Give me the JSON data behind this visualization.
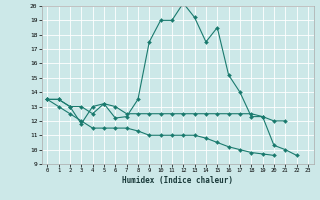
{
  "xlabel": "Humidex (Indice chaleur)",
  "x": [
    0,
    1,
    2,
    3,
    4,
    5,
    6,
    7,
    8,
    9,
    10,
    11,
    12,
    13,
    14,
    15,
    16,
    17,
    18,
    19,
    20,
    21,
    22,
    23
  ],
  "line1": [
    13.5,
    13.5,
    13.0,
    11.8,
    13.0,
    13.2,
    12.2,
    12.3,
    13.5,
    17.5,
    19.0,
    19.0,
    20.2,
    19.2,
    17.5,
    18.5,
    15.2,
    14.0,
    12.3,
    12.3,
    10.3,
    10.0,
    9.6,
    null
  ],
  "line2": [
    13.5,
    13.5,
    13.0,
    13.0,
    12.5,
    13.2,
    13.0,
    12.5,
    12.5,
    12.5,
    12.5,
    12.5,
    12.5,
    12.5,
    12.5,
    12.5,
    12.5,
    12.5,
    12.5,
    12.3,
    12.0,
    12.0,
    null,
    null
  ],
  "line3": [
    13.5,
    13.0,
    12.5,
    12.0,
    11.5,
    11.5,
    11.5,
    11.5,
    11.3,
    11.0,
    11.0,
    11.0,
    11.0,
    11.0,
    10.8,
    10.5,
    10.2,
    10.0,
    9.8,
    9.7,
    9.6,
    null,
    null,
    null
  ],
  "ylim": [
    9,
    20
  ],
  "xlim": [
    -0.5,
    23.5
  ],
  "yticks": [
    9,
    10,
    11,
    12,
    13,
    14,
    15,
    16,
    17,
    18,
    19,
    20
  ],
  "xticks": [
    0,
    1,
    2,
    3,
    4,
    5,
    6,
    7,
    8,
    9,
    10,
    11,
    12,
    13,
    14,
    15,
    16,
    17,
    18,
    19,
    20,
    21,
    22,
    23
  ],
  "line_color": "#1a7a6e",
  "bg_color": "#cce8e8",
  "grid_color": "#ffffff",
  "marker": "D",
  "marker_size": 2,
  "linewidth": 0.8
}
